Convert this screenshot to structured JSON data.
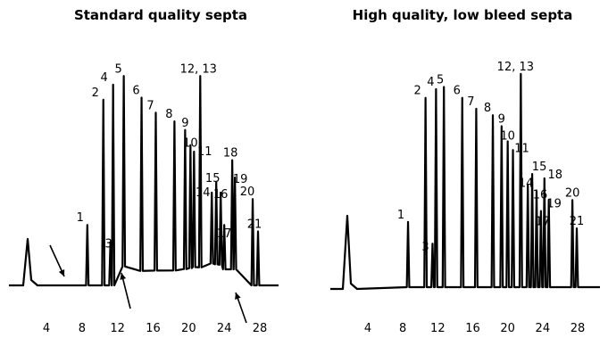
{
  "chart_data": [
    {
      "type": "line",
      "title": "Standard quality septa",
      "xlabel": "",
      "ylabel": "",
      "xlim": [
        1,
        31
      ],
      "ylim": [
        0,
        100
      ],
      "x_ticks": [
        "4",
        "8",
        "12",
        "16",
        "20",
        "24",
        "28"
      ],
      "baseline_note": "elevated, noisy baseline with bleed peaks (arrows)",
      "peaks": [
        {
          "label": "1",
          "x": 8.6,
          "height": 28
        },
        {
          "label": "2",
          "x": 10.4,
          "height": 86
        },
        {
          "label": "3",
          "x": 11.2,
          "height": 20
        },
        {
          "label": "4",
          "x": 11.5,
          "height": 93
        },
        {
          "label": "5",
          "x": 12.7,
          "height": 97
        },
        {
          "label": "6",
          "x": 14.7,
          "height": 87
        },
        {
          "label": "7",
          "x": 16.3,
          "height": 80
        },
        {
          "label": "8",
          "x": 18.4,
          "height": 76
        },
        {
          "label": "9",
          "x": 19.6,
          "height": 72
        },
        {
          "label": "10",
          "x": 20.2,
          "height": 65
        },
        {
          "label": "11",
          "x": 20.6,
          "height": 62
        },
        {
          "label": "12, 13",
          "x": 21.3,
          "height": 97
        },
        {
          "label": "14",
          "x": 22.6,
          "height": 43
        },
        {
          "label": "15",
          "x": 23.1,
          "height": 48
        },
        {
          "label": "16",
          "x": 23.6,
          "height": 43
        },
        {
          "label": "17",
          "x": 24.0,
          "height": 28
        },
        {
          "label": "18",
          "x": 24.9,
          "height": 58
        },
        {
          "label": "19",
          "x": 25.2,
          "height": 50
        },
        {
          "label": "20",
          "x": 27.2,
          "height": 40
        },
        {
          "label": "21",
          "x": 27.8,
          "height": 25
        }
      ]
    },
    {
      "type": "line",
      "title": "High quality, low bleed septa",
      "xlabel": "",
      "ylabel": "",
      "xlim": [
        1,
        31
      ],
      "ylim": [
        0,
        100
      ],
      "x_ticks": [
        "4",
        "8",
        "12",
        "16",
        "20",
        "24",
        "28"
      ],
      "baseline_note": "flat, clean baseline",
      "peaks": [
        {
          "label": "1",
          "x": 8.6,
          "height": 30
        },
        {
          "label": "2",
          "x": 10.6,
          "height": 87
        },
        {
          "label": "3",
          "x": 11.4,
          "height": 20
        },
        {
          "label": "4",
          "x": 11.8,
          "height": 91
        },
        {
          "label": "5",
          "x": 12.7,
          "height": 92
        },
        {
          "label": "6",
          "x": 14.8,
          "height": 87
        },
        {
          "label": "7",
          "x": 16.4,
          "height": 82
        },
        {
          "label": "8",
          "x": 18.3,
          "height": 79
        },
        {
          "label": "9",
          "x": 19.3,
          "height": 74
        },
        {
          "label": "10",
          "x": 20.0,
          "height": 67
        },
        {
          "label": "11",
          "x": 20.6,
          "height": 63
        },
        {
          "label": "12, 13",
          "x": 21.5,
          "height": 98
        },
        {
          "label": "14",
          "x": 22.3,
          "height": 47
        },
        {
          "label": "15",
          "x": 22.8,
          "height": 52
        },
        {
          "label": "16",
          "x": 23.3,
          "height": 44
        },
        {
          "label": "17",
          "x": 23.8,
          "height": 35
        },
        {
          "label": "18",
          "x": 24.2,
          "height": 50
        },
        {
          "label": "19",
          "x": 24.7,
          "height": 40
        },
        {
          "label": "20",
          "x": 27.4,
          "height": 40
        },
        {
          "label": "21",
          "x": 27.9,
          "height": 27
        }
      ]
    }
  ]
}
